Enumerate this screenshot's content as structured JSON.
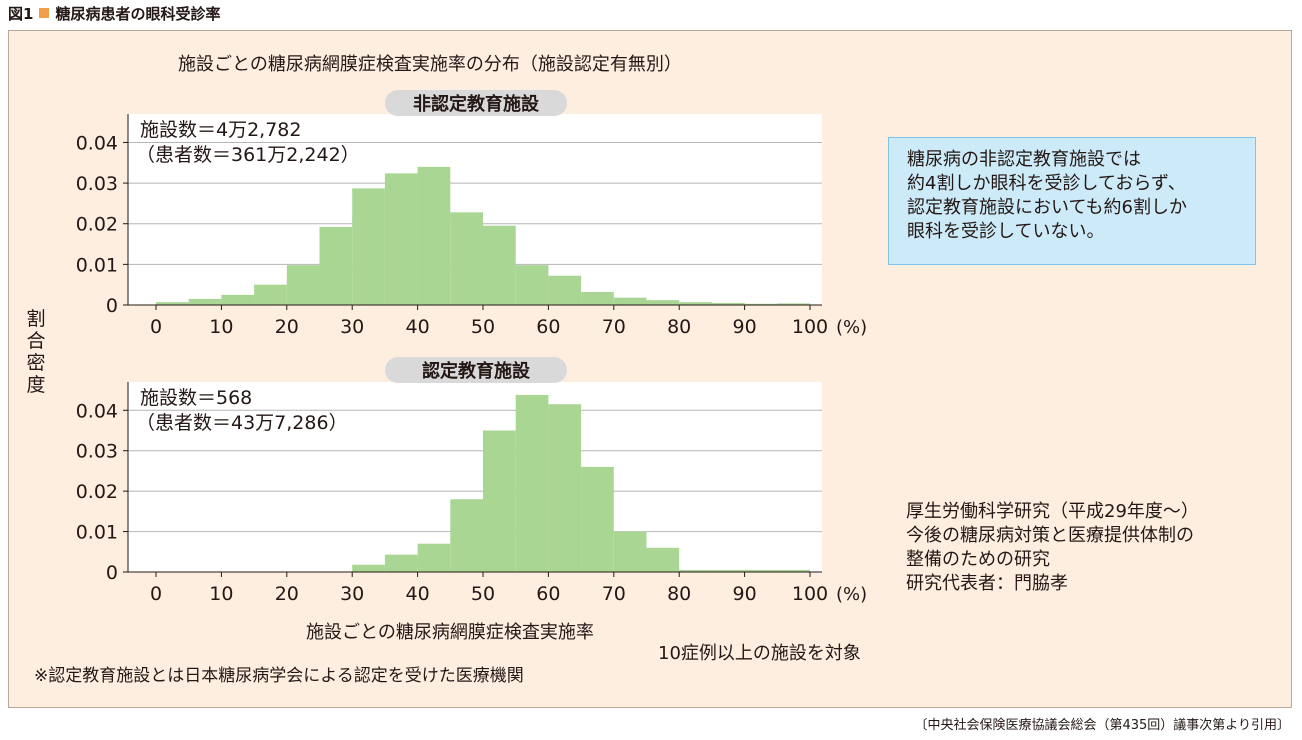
{
  "figure_label": "図1",
  "figure_title": "糖尿病患者の眼科受診率",
  "note": {
    "lines": [
      "糖尿病の非認定教育施設では",
      "約4割しか眼科を受診しておらず、",
      "認定教育施設においても約6割しか",
      "眼科を受診していない。"
    ]
  },
  "research": {
    "lines": [
      "厚生労働科学研究（平成29年度～）",
      "今後の糖尿病対策と医療提供体制の",
      "整備のための研究",
      "研究代表者：門脇孝"
    ]
  },
  "target_note": "10症例以上の施設を対象",
  "footnote": "※認定教育施設とは日本糖尿病学会による認定を受けた医療機関",
  "citation": "〔中央社会保険医療協議会総会（第435回）議事次第より引用〕",
  "colors": {
    "bar": "#a9d693",
    "panel": "#fdeee0",
    "note_box": "#cdeaf8",
    "pill": "#d9d9d9",
    "title_square": "#f0a04b"
  },
  "chart_data": {
    "type": "bar",
    "title": "施設ごとの糖尿病網膜症検査実施率の分布（施設認定有無別）",
    "xlabel": "施設ごとの糖尿病網膜症検査実施率",
    "ylabel": "割合密度",
    "x_unit": "(%)",
    "x_ticks": [
      0,
      10,
      20,
      30,
      40,
      50,
      60,
      70,
      80,
      90,
      100
    ],
    "y_ticks": [
      0,
      0.01,
      0.02,
      0.03,
      0.04
    ],
    "y_tick_labels": [
      "0",
      "0.01",
      "0.02",
      "0.03",
      "0.04"
    ],
    "xlim": [
      -5,
      102
    ],
    "ylim": [
      0,
      0.047
    ],
    "grid": "horizontal",
    "bin_width": 5,
    "panels": [
      {
        "name": "非認定教育施設",
        "count_text": "施設数＝4万2,782",
        "patients_text": "（患者数＝361万2,242）",
        "bins_start": [
          0,
          5,
          10,
          15,
          20,
          25,
          30,
          35,
          40,
          45,
          50,
          55,
          60,
          65,
          70,
          75,
          80,
          85,
          90,
          95
        ],
        "values": [
          0.0007,
          0.0015,
          0.0025,
          0.005,
          0.0098,
          0.0192,
          0.0287,
          0.0324,
          0.034,
          0.0228,
          0.0195,
          0.0098,
          0.0072,
          0.0032,
          0.0018,
          0.0012,
          0.0007,
          0.0005,
          0.0003,
          0.0004
        ]
      },
      {
        "name": "認定教育施設",
        "count_text": "施設数＝568",
        "patients_text": "（患者数＝43万7,286）",
        "bins_start": [
          0,
          5,
          10,
          15,
          20,
          25,
          30,
          35,
          40,
          45,
          50,
          55,
          60,
          65,
          70,
          75,
          80,
          85,
          90,
          95
        ],
        "values": [
          0,
          0,
          0,
          0,
          0,
          0,
          0.0018,
          0.0043,
          0.007,
          0.018,
          0.035,
          0.0438,
          0.0415,
          0.026,
          0.01,
          0.006,
          0.0005,
          0.0005,
          0.0005,
          0.0005
        ]
      }
    ]
  }
}
